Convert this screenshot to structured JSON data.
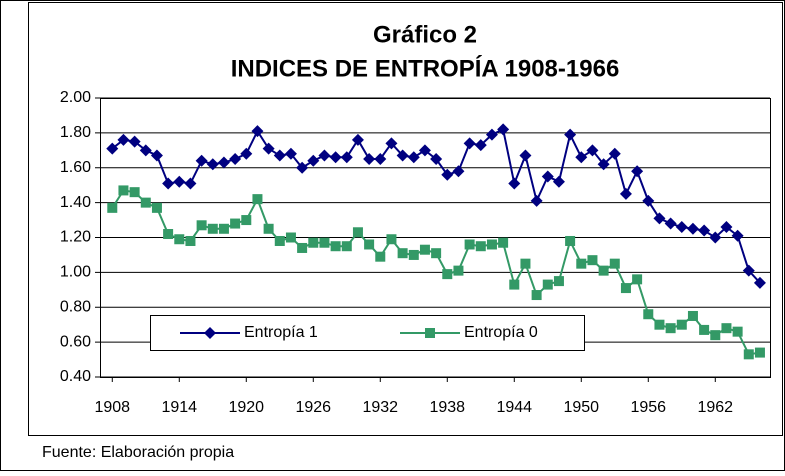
{
  "chart_data": {
    "type": "line",
    "title": "Gráfico 2",
    "subtitle": "INDICES DE ENTROPÍA 1908-1966",
    "source": "Fuente: Elaboración propia",
    "x": [
      1908,
      1909,
      1910,
      1911,
      1912,
      1913,
      1914,
      1915,
      1916,
      1917,
      1918,
      1919,
      1920,
      1921,
      1922,
      1923,
      1924,
      1925,
      1926,
      1927,
      1928,
      1929,
      1930,
      1931,
      1932,
      1933,
      1934,
      1935,
      1936,
      1937,
      1938,
      1939,
      1940,
      1941,
      1942,
      1943,
      1944,
      1945,
      1946,
      1947,
      1948,
      1949,
      1950,
      1951,
      1952,
      1953,
      1954,
      1955,
      1956,
      1957,
      1958,
      1959,
      1960,
      1961,
      1962,
      1963,
      1964,
      1965,
      1966
    ],
    "series": [
      {
        "name": "Entropía 1",
        "color": "#000080",
        "marker": "diamond",
        "values": [
          1.71,
          1.76,
          1.75,
          1.7,
          1.67,
          1.51,
          1.52,
          1.51,
          1.64,
          1.62,
          1.63,
          1.65,
          1.68,
          1.81,
          1.71,
          1.67,
          1.68,
          1.6,
          1.64,
          1.67,
          1.66,
          1.66,
          1.76,
          1.65,
          1.65,
          1.74,
          1.67,
          1.66,
          1.7,
          1.65,
          1.56,
          1.58,
          1.74,
          1.73,
          1.79,
          1.82,
          1.51,
          1.67,
          1.41,
          1.55,
          1.52,
          1.79,
          1.66,
          1.7,
          1.62,
          1.68,
          1.45,
          1.58,
          1.41,
          1.31,
          1.28,
          1.26,
          1.25,
          1.24,
          1.2,
          1.26,
          1.21,
          1.01,
          0.94
        ]
      },
      {
        "name": "Entropía 0",
        "color": "#339966",
        "marker": "square",
        "values": [
          1.37,
          1.47,
          1.46,
          1.4,
          1.37,
          1.22,
          1.19,
          1.18,
          1.27,
          1.25,
          1.25,
          1.28,
          1.3,
          1.42,
          1.25,
          1.18,
          1.2,
          1.14,
          1.17,
          1.17,
          1.15,
          1.15,
          1.23,
          1.16,
          1.09,
          1.19,
          1.11,
          1.1,
          1.13,
          1.11,
          0.99,
          1.01,
          1.16,
          1.15,
          1.16,
          1.17,
          0.93,
          1.05,
          0.87,
          0.93,
          0.95,
          1.18,
          1.05,
          1.07,
          1.01,
          1.05,
          0.91,
          0.96,
          0.76,
          0.7,
          0.68,
          0.7,
          0.75,
          0.67,
          0.64,
          0.68,
          0.66,
          0.53,
          0.54
        ]
      }
    ],
    "xlim": [
      1906.9,
      1966.9
    ],
    "xticks": [
      1908,
      1914,
      1920,
      1926,
      1932,
      1938,
      1944,
      1950,
      1956,
      1962
    ],
    "ylim": [
      0.4,
      2.0
    ],
    "yticks": [
      {
        "value": 0.4,
        "label": "0.40"
      },
      {
        "value": 0.6,
        "label": "0.60"
      },
      {
        "value": 0.8,
        "label": "0.80"
      },
      {
        "value": 1.0,
        "label": "1.00"
      },
      {
        "value": 1.2,
        "label": "1.20"
      },
      {
        "value": 1.4,
        "label": "1.40"
      },
      {
        "value": 1.6,
        "label": "1.60"
      },
      {
        "value": 1.8,
        "label": "1.80"
      },
      {
        "value": 2.0,
        "label": "2.00"
      }
    ],
    "grid": true
  }
}
